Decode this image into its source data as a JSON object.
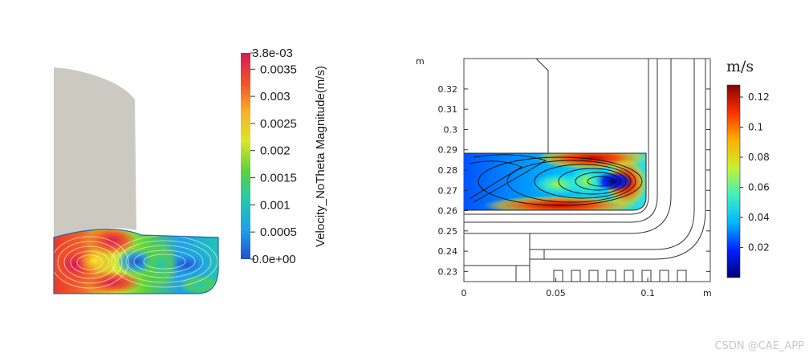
{
  "left_plot": {
    "colorbar": {
      "title": "Velocity_NoTheta Magnitude(m/s)",
      "max_label": "3.8e-03",
      "min_label": "0.0e+00",
      "ticks": [
        "0.0035",
        "0.003",
        "0.0025",
        "0.002",
        "0.0015",
        "0.001",
        "0.0005"
      ],
      "tick_values": [
        0.0035,
        0.003,
        0.0025,
        0.002,
        0.0015,
        0.001,
        0.0005
      ],
      "range": [
        0,
        0.0038
      ],
      "colormap": [
        "#2250d0",
        "#1fa0e8",
        "#22c8b0",
        "#5cd23c",
        "#d8e828",
        "#f8b02a",
        "#f05028",
        "#d8185a"
      ]
    }
  },
  "right_plot": {
    "x_unit": "m",
    "y_unit": "m",
    "x_ticks": [
      "0",
      "0.05",
      "0.1"
    ],
    "x_tick_values": [
      0,
      0.05,
      0.1
    ],
    "y_ticks": [
      "0.32",
      "0.31",
      "0.3",
      "0.29",
      "0.28",
      "0.27",
      "0.26",
      "0.25",
      "0.24",
      "0.23"
    ],
    "y_tick_values": [
      0.32,
      0.31,
      0.3,
      0.29,
      0.28,
      0.27,
      0.26,
      0.25,
      0.24,
      0.23
    ],
    "xlim": [
      0,
      0.134
    ],
    "ylim": [
      0.225,
      0.335
    ],
    "colorbar": {
      "title": "m/s",
      "ticks": [
        "0.12",
        "0.1",
        "0.08",
        "0.06",
        "0.04",
        "0.02"
      ],
      "tick_values": [
        0.12,
        0.1,
        0.08,
        0.06,
        0.04,
        0.02
      ],
      "range": [
        0,
        0.128
      ],
      "colormap": [
        "#00007a",
        "#0020ff",
        "#00b8ff",
        "#40f0c0",
        "#c8f030",
        "#ffb000",
        "#ff3000",
        "#8a0000"
      ]
    }
  },
  "chart_data": [
    {
      "type": "heatmap",
      "title": "",
      "colorbar_label": "Velocity_NoTheta Magnitude(m/s)",
      "value_range": [
        0,
        0.0038
      ],
      "colorbar_ticks": [
        0,
        0.0005,
        0.001,
        0.0015,
        0.002,
        0.0025,
        0.003,
        0.0035,
        0.0038
      ]
    },
    {
      "type": "heatmap",
      "title": "",
      "xlabel": "m",
      "ylabel": "m",
      "xlim": [
        0,
        0.134
      ],
      "ylim": [
        0.225,
        0.335
      ],
      "colorbar_label": "m/s",
      "value_range": [
        0,
        0.128
      ],
      "colorbar_ticks": [
        0.02,
        0.04,
        0.06,
        0.08,
        0.1,
        0.12
      ]
    }
  ],
  "watermark": "CSDN @CAE_APP"
}
